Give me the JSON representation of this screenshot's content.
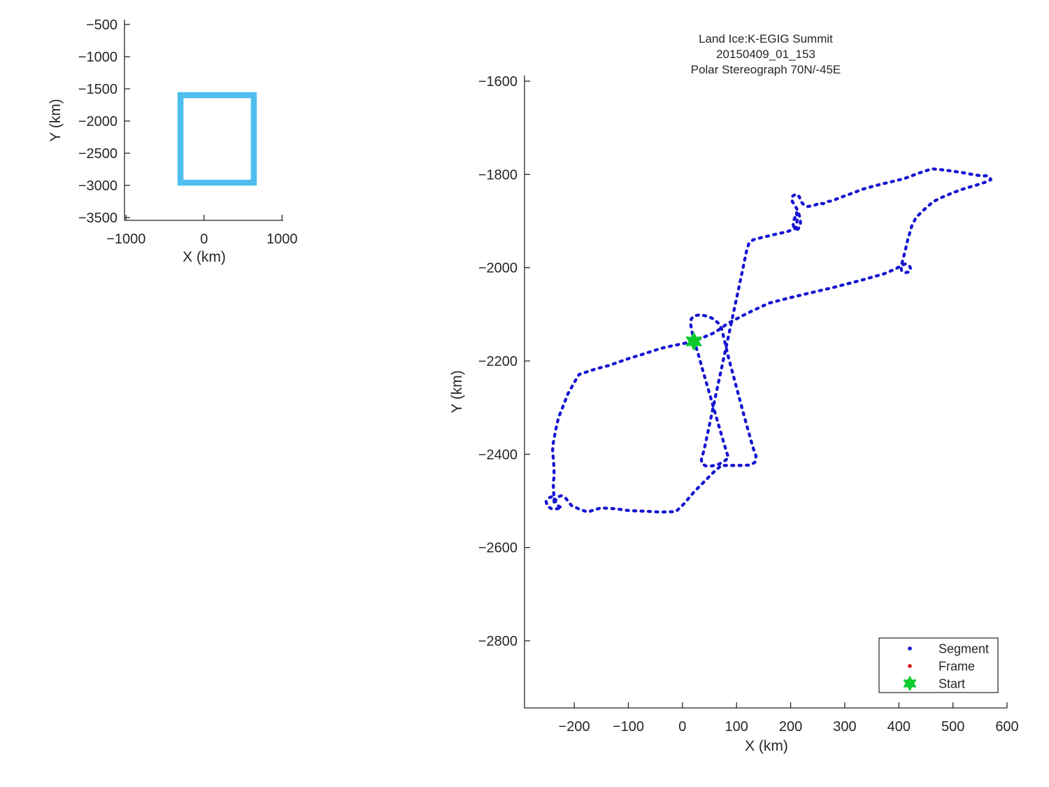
{
  "figure": {
    "background": "#ffffff",
    "text_color": "#262626"
  },
  "chart_data": [
    {
      "id": "overview",
      "type": "line",
      "title": "",
      "xlabel": "X (km)",
      "ylabel": "Y (km)",
      "xlim": [
        -1020,
        1015
      ],
      "ylim": [
        -424,
        -3543
      ],
      "xticks": [
        -1000,
        0,
        1000
      ],
      "yticks": [
        -500,
        -1000,
        -1500,
        -2000,
        -2500,
        -3000,
        -3500
      ],
      "grid": false,
      "extent_rect": {
        "x0": -302,
        "x1": 638,
        "y0": -1598,
        "y1": -2957,
        "color": "#4dbeee",
        "stroke_px": 8.5
      }
    },
    {
      "id": "flight-track",
      "type": "line",
      "title_lines": [
        "Land Ice:K-EGIG Summit",
        "20150409_01_153",
        "Polar Stereograph 70N/-45E"
      ],
      "xlabel": "X (km)",
      "ylabel": "Y (km)",
      "xlim": [
        -292,
        600
      ],
      "ylim": [
        -1588,
        -2944
      ],
      "xticks": [
        -200,
        -100,
        0,
        100,
        200,
        300,
        400,
        500,
        600
      ],
      "yticks": [
        -1600,
        -1800,
        -2000,
        -2200,
        -2400,
        -2600,
        -2800
      ],
      "grid": false,
      "track_color": "#1414d2",
      "frame_color": "#dc1414",
      "start_color": "#0ccc2d",
      "start_point": [
        21,
        -2158
      ],
      "legend": [
        {
          "label": "Segment",
          "marker": "dot",
          "color": "#1414d2"
        },
        {
          "label": "Frame",
          "marker": "dot",
          "color": "#dc1414"
        },
        {
          "label": "Start",
          "marker": "hexagram",
          "color": "#0ccc2d"
        }
      ],
      "track_points": [
        [
          21,
          -2158
        ],
        [
          18,
          -2139
        ],
        [
          15,
          -2121
        ],
        [
          16,
          -2110
        ],
        [
          22,
          -2103
        ],
        [
          33,
          -2101
        ],
        [
          46,
          -2104
        ],
        [
          58,
          -2110
        ],
        [
          68,
          -2121
        ],
        [
          73,
          -2133
        ],
        [
          85,
          -2192
        ],
        [
          100,
          -2257
        ],
        [
          115,
          -2322
        ],
        [
          130,
          -2384
        ],
        [
          136,
          -2404
        ],
        [
          134,
          -2417
        ],
        [
          126,
          -2423
        ],
        [
          110,
          -2424
        ],
        [
          90,
          -2424
        ],
        [
          72,
          -2424
        ],
        [
          58,
          -2438
        ],
        [
          40,
          -2459
        ],
        [
          22,
          -2480
        ],
        [
          3,
          -2506
        ],
        [
          -12,
          -2523
        ],
        [
          -40,
          -2524
        ],
        [
          -70,
          -2522
        ],
        [
          -98,
          -2521
        ],
        [
          -124,
          -2517
        ],
        [
          -150,
          -2515
        ],
        [
          -163,
          -2519
        ],
        [
          -175,
          -2524
        ],
        [
          -190,
          -2518
        ],
        [
          -205,
          -2510
        ],
        [
          -210,
          -2503
        ],
        [
          -216,
          -2494
        ],
        [
          -224,
          -2489
        ],
        [
          -232,
          -2492
        ],
        [
          -235,
          -2501
        ],
        [
          -231,
          -2510
        ],
        [
          -223,
          -2515
        ],
        [
          -232,
          -2517
        ],
        [
          -242,
          -2517
        ],
        [
          -250,
          -2511
        ],
        [
          -252,
          -2501
        ],
        [
          -246,
          -2493
        ],
        [
          -238,
          -2490
        ],
        [
          -236,
          -2498
        ],
        [
          -237,
          -2507
        ],
        [
          -238,
          -2484
        ],
        [
          -239,
          -2461
        ],
        [
          -237,
          -2447
        ],
        [
          -238,
          -2421
        ],
        [
          -239,
          -2406
        ],
        [
          -240,
          -2391
        ],
        [
          -239,
          -2377
        ],
        [
          -234,
          -2346
        ],
        [
          -229,
          -2321
        ],
        [
          -222,
          -2301
        ],
        [
          -212,
          -2271
        ],
        [
          -200,
          -2246
        ],
        [
          -191,
          -2229
        ],
        [
          -160,
          -2217
        ],
        [
          -137,
          -2210
        ],
        [
          -100,
          -2195
        ],
        [
          -72,
          -2185
        ],
        [
          -40,
          -2173
        ],
        [
          -21,
          -2168
        ],
        [
          0,
          -2163
        ],
        [
          21,
          -2158
        ],
        [
          60,
          -2139
        ],
        [
          83,
          -2120
        ],
        [
          121,
          -2097
        ],
        [
          160,
          -2076
        ],
        [
          200,
          -2064
        ],
        [
          240,
          -2053
        ],
        [
          280,
          -2042
        ],
        [
          330,
          -2027
        ],
        [
          373,
          -2013
        ],
        [
          395,
          -2002
        ],
        [
          404,
          -1996
        ],
        [
          412,
          -1992
        ],
        [
          419,
          -1995
        ],
        [
          422,
          -2002
        ],
        [
          419,
          -2009
        ],
        [
          411,
          -2011
        ],
        [
          405,
          -2006
        ],
        [
          404,
          -1999
        ],
        [
          407,
          -1985
        ],
        [
          412,
          -1962
        ],
        [
          417,
          -1938
        ],
        [
          424,
          -1910
        ],
        [
          432,
          -1892
        ],
        [
          448,
          -1874
        ],
        [
          464,
          -1858
        ],
        [
          480,
          -1849
        ],
        [
          496,
          -1841
        ],
        [
          512,
          -1834
        ],
        [
          528,
          -1828
        ],
        [
          543,
          -1823
        ],
        [
          556,
          -1818
        ],
        [
          565,
          -1815
        ],
        [
          570,
          -1811
        ],
        [
          568,
          -1806
        ],
        [
          562,
          -1803
        ],
        [
          553,
          -1803
        ],
        [
          540,
          -1801
        ],
        [
          522,
          -1797
        ],
        [
          500,
          -1793
        ],
        [
          480,
          -1790
        ],
        [
          461,
          -1788
        ],
        [
          435,
          -1798
        ],
        [
          410,
          -1809
        ],
        [
          385,
          -1816
        ],
        [
          360,
          -1823
        ],
        [
          335,
          -1831
        ],
        [
          310,
          -1842
        ],
        [
          293,
          -1849
        ],
        [
          276,
          -1857
        ],
        [
          268,
          -1858
        ],
        [
          260,
          -1863
        ],
        [
          253,
          -1861
        ],
        [
          247,
          -1865
        ],
        [
          240,
          -1867
        ],
        [
          231,
          -1869
        ],
        [
          225,
          -1866
        ],
        [
          219,
          -1858
        ],
        [
          216,
          -1848
        ],
        [
          210,
          -1842
        ],
        [
          203,
          -1847
        ],
        [
          203,
          -1858
        ],
        [
          208,
          -1867
        ],
        [
          213,
          -1877
        ],
        [
          216,
          -1888
        ],
        [
          218,
          -1899
        ],
        [
          218,
          -1910
        ],
        [
          213,
          -1918
        ],
        [
          206,
          -1915
        ],
        [
          204,
          -1903
        ],
        [
          208,
          -1892
        ],
        [
          211,
          -1882
        ],
        [
          212,
          -1896
        ],
        [
          211,
          -1909
        ],
        [
          209,
          -1916
        ],
        [
          193,
          -1923
        ],
        [
          173,
          -1928
        ],
        [
          151,
          -1934
        ],
        [
          131,
          -1940
        ],
        [
          123,
          -1947
        ],
        [
          118,
          -1966
        ],
        [
          110,
          -2011
        ],
        [
          100,
          -2066
        ],
        [
          88,
          -2131
        ],
        [
          75,
          -2201
        ],
        [
          62,
          -2271
        ],
        [
          50,
          -2336
        ],
        [
          40,
          -2391
        ],
        [
          35,
          -2411
        ],
        [
          36,
          -2420
        ],
        [
          43,
          -2425
        ],
        [
          55,
          -2425
        ],
        [
          68,
          -2421
        ],
        [
          78,
          -2414
        ],
        [
          85,
          -2408
        ],
        [
          75,
          -2370
        ],
        [
          62,
          -2318
        ],
        [
          50,
          -2270
        ],
        [
          38,
          -2222
        ],
        [
          28,
          -2180
        ],
        [
          21,
          -2158
        ]
      ]
    }
  ]
}
